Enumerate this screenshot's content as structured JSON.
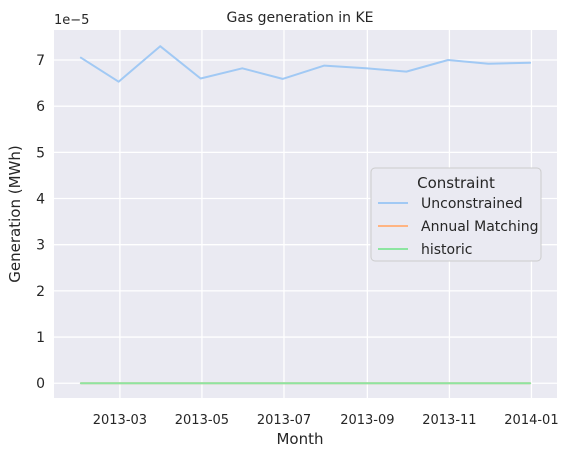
{
  "chart_data": {
    "type": "line",
    "title": "Gas generation in KE",
    "xlabel": "Month",
    "ylabel": "Generation (MWh)",
    "y_scale_label": "1e−5",
    "ylim": [
      -3.2e-06,
      7.65e-05
    ],
    "xlim": [
      "2013-01-11",
      "2014-01-20"
    ],
    "y_ticks": [
      {
        "value": 0,
        "label": "0"
      },
      {
        "value": 1e-05,
        "label": "1"
      },
      {
        "value": 2e-05,
        "label": "2"
      },
      {
        "value": 3e-05,
        "label": "3"
      },
      {
        "value": 4e-05,
        "label": "4"
      },
      {
        "value": 5e-05,
        "label": "5"
      },
      {
        "value": 6e-05,
        "label": "6"
      },
      {
        "value": 7e-05,
        "label": "7"
      }
    ],
    "x_ticks": [
      {
        "value": "2013-03-01",
        "label": "2013-03"
      },
      {
        "value": "2013-05-01",
        "label": "2013-05"
      },
      {
        "value": "2013-07-01",
        "label": "2013-07"
      },
      {
        "value": "2013-09-01",
        "label": "2013-09"
      },
      {
        "value": "2013-11-01",
        "label": "2013-11"
      },
      {
        "value": "2014-01-01",
        "label": "2014-01"
      }
    ],
    "grid": true,
    "x": [
      "2013-01-31",
      "2013-02-28",
      "2013-03-31",
      "2013-04-30",
      "2013-05-31",
      "2013-06-30",
      "2013-07-31",
      "2013-08-31",
      "2013-09-30",
      "2013-10-31",
      "2013-11-30",
      "2013-12-31"
    ],
    "series": [
      {
        "name": "Unconstrained",
        "color": "#a1c9f4",
        "values": [
          7.05e-05,
          6.53e-05,
          7.3e-05,
          6.6e-05,
          6.82e-05,
          6.59e-05,
          6.88e-05,
          6.82e-05,
          6.75e-05,
          7e-05,
          6.92e-05,
          6.94e-05
        ]
      },
      {
        "name": "Annual Matching",
        "color": "#ffb482",
        "values": [
          0,
          0,
          0,
          0,
          0,
          0,
          0,
          0,
          0,
          0,
          0,
          0
        ]
      },
      {
        "name": "historic",
        "color": "#8de5a1",
        "values": [
          0,
          0,
          0,
          0,
          0,
          0,
          0,
          0,
          0,
          0,
          0,
          0
        ]
      }
    ],
    "legend": {
      "title": "Constraint",
      "position": "center-right"
    }
  }
}
